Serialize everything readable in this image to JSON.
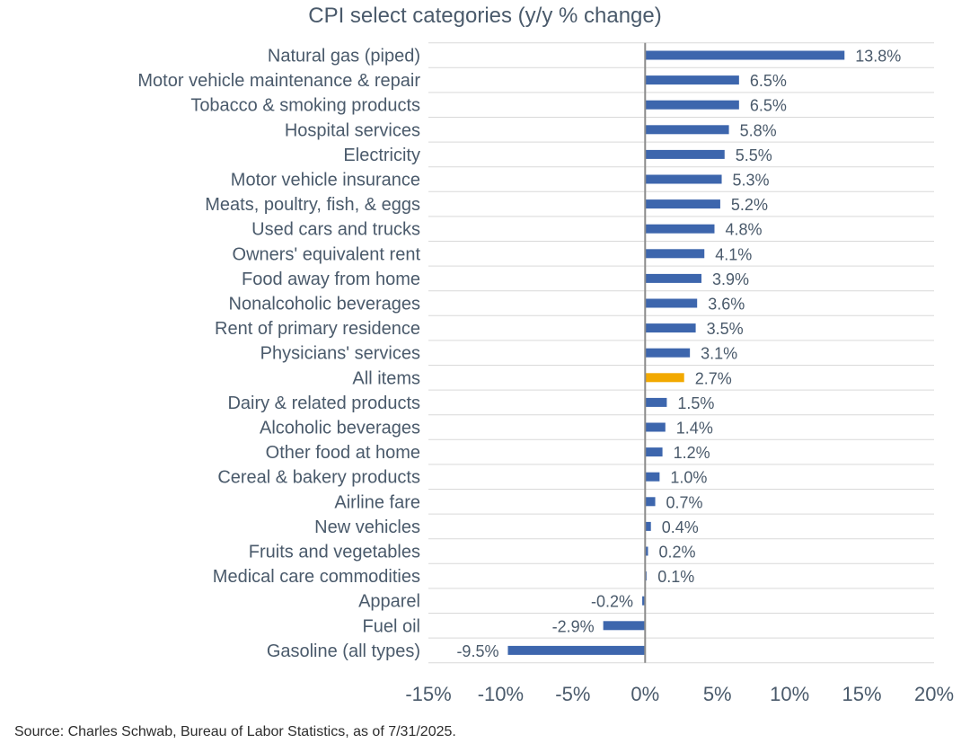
{
  "chart_data": {
    "type": "bar",
    "orientation": "horizontal",
    "title": "CPI select categories (y/y % change)",
    "xlabel": "",
    "ylabel": "",
    "xlim": [
      -15,
      20
    ],
    "x_ticks": [
      -15,
      -10,
      -5,
      0,
      5,
      10,
      15,
      20
    ],
    "x_tick_labels": [
      "-15%",
      "-10%",
      "-5%",
      "0%",
      "5%",
      "10%",
      "15%",
      "20%"
    ],
    "grid": "horizontal row lines",
    "legend": "none",
    "colors": {
      "default": "#3d66ad",
      "highlight": "#f2a900",
      "grid": "#d9d9d9",
      "axis": "#8c8c8c"
    },
    "highlight_category": "All items",
    "categories": [
      "Natural gas (piped)",
      "Motor vehicle maintenance & repair",
      "Tobacco & smoking products",
      "Hospital services",
      "Electricity",
      "Motor vehicle insurance",
      "Meats, poultry, fish, & eggs",
      "Used cars and trucks",
      "Owners' equivalent rent",
      "Food away from home",
      "Nonalcoholic beverages",
      "Rent of primary residence",
      "Physicians' services",
      "All items",
      "Dairy & related products",
      "Alcoholic beverages",
      "Other food at home",
      "Cereal & bakery products",
      "Airline fare",
      "New vehicles",
      "Fruits and vegetables",
      "Medical care commodities",
      "Apparel",
      "Fuel oil",
      "Gasoline (all types)"
    ],
    "values": [
      13.8,
      6.5,
      6.5,
      5.8,
      5.5,
      5.3,
      5.2,
      4.8,
      4.1,
      3.9,
      3.6,
      3.5,
      3.1,
      2.7,
      1.5,
      1.4,
      1.2,
      1.0,
      0.7,
      0.4,
      0.2,
      0.1,
      -0.2,
      -2.9,
      -9.5
    ],
    "data_labels": [
      "13.8%",
      "6.5%",
      "6.5%",
      "5.8%",
      "5.5%",
      "5.3%",
      "5.2%",
      "4.8%",
      "4.1%",
      "3.9%",
      "3.6%",
      "3.5%",
      "3.1%",
      "2.7%",
      "1.5%",
      "1.4%",
      "1.2%",
      "1.0%",
      "0.7%",
      "0.4%",
      "0.2%",
      "0.1%",
      "-0.2%",
      "-2.9%",
      "-9.5%"
    ]
  },
  "source_note": "Source: Charles Schwab, Bureau of Labor Statistics, as of 7/31/2025."
}
